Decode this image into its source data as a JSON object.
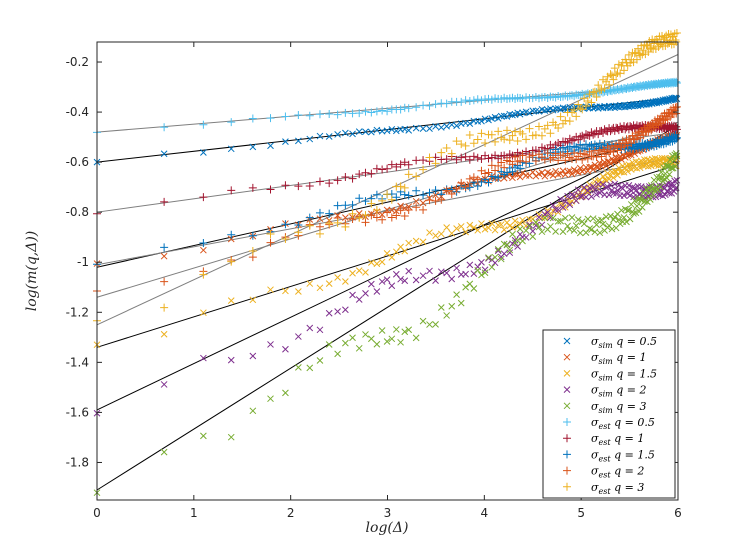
{
  "chart_data": {
    "type": "scatter",
    "title": "",
    "xlabel": "log(Δ)",
    "ylabel": "log(m(q,Δ))",
    "xlim": [
      0,
      6
    ],
    "ylim": [
      -1.95,
      -0.12
    ],
    "xticks": [
      0,
      1,
      2,
      3,
      4,
      5,
      6
    ],
    "xtick_labels": [
      "0",
      "1",
      "2",
      "3",
      "4",
      "5",
      "6"
    ],
    "yticks": [
      -1.8,
      -1.6,
      -1.4,
      -1.2,
      -1,
      -0.8,
      -0.6,
      -0.4,
      -0.2
    ],
    "ytick_labels": [
      "-1.8",
      "-1.6",
      "-1.4",
      "-1.2",
      "-1",
      "-0.8",
      "-0.6",
      "-0.4",
      "-0.2"
    ],
    "grid": false,
    "legend_position": "bottom-right",
    "series": [
      {
        "name": "σ_sim q = 0.5",
        "sub": "sim",
        "q": "0.5",
        "marker": "x",
        "color": "#0072BD",
        "intercept": -0.6,
        "end": -0.34,
        "osc": 0.008
      },
      {
        "name": "σ_sim q = 1",
        "sub": "sim",
        "q": "1",
        "marker": "x",
        "color": "#D95319",
        "intercept": -1.02,
        "end": -0.52,
        "osc": 0.018
      },
      {
        "name": "σ_sim q = 1.5",
        "sub": "sim",
        "q": "1.5",
        "marker": "x",
        "color": "#EDB120",
        "intercept": -1.34,
        "end": -0.6,
        "osc": 0.03
      },
      {
        "name": "σ_sim q = 2",
        "sub": "sim",
        "q": "2",
        "marker": "x",
        "color": "#7E2F8E",
        "intercept": -1.59,
        "end": -0.62,
        "osc": 0.045
      },
      {
        "name": "σ_sim q = 3",
        "sub": "sim",
        "q": "3",
        "marker": "x",
        "color": "#77AC30",
        "intercept": -1.91,
        "end": -0.6,
        "osc": 0.06
      },
      {
        "name": "σ_est q = 0.5",
        "sub": "est",
        "q": "0.5",
        "marker": "+",
        "color": "#4DBEEE",
        "intercept": -0.48,
        "end": -0.29,
        "osc": 0.006
      },
      {
        "name": "σ_est q = 1",
        "sub": "est",
        "q": "1",
        "marker": "+",
        "color": "#A2142F",
        "intercept": -0.8,
        "end": -0.45,
        "osc": 0.015
      },
      {
        "name": "σ_est q = 1.5",
        "sub": "est",
        "q": "1.5",
        "marker": "+",
        "color": "#0072BD",
        "intercept": -1.01,
        "end": -0.47,
        "osc": 0.022
      },
      {
        "name": "σ_est q = 2",
        "sub": "est",
        "q": "2",
        "marker": "+",
        "color": "#D95319",
        "intercept": -1.14,
        "end": -0.42,
        "osc": 0.03
      },
      {
        "name": "σ_est q = 3",
        "sub": "est",
        "q": "3",
        "marker": "+",
        "color": "#EDB120",
        "intercept": -1.25,
        "end": -0.15,
        "osc": 0.045
      }
    ],
    "fit_lines": [
      {
        "color": "#000000",
        "y0": -0.6,
        "y6": -0.34
      },
      {
        "color": "#000000",
        "y0": -1.02,
        "y6": -0.5
      },
      {
        "color": "#000000",
        "y0": -1.34,
        "y6": -0.61
      },
      {
        "color": "#000000",
        "y0": -1.59,
        "y6": -0.48
      },
      {
        "color": "#000000",
        "y0": -1.91,
        "y6": -0.45
      },
      {
        "color": "#7f7f7f",
        "y0": -0.48,
        "y6": -0.29
      },
      {
        "color": "#7f7f7f",
        "y0": -0.8,
        "y6": -0.48
      },
      {
        "color": "#7f7f7f",
        "y0": -1.01,
        "y6": -0.58
      },
      {
        "color": "#7f7f7f",
        "y0": -1.14,
        "y6": -0.44
      },
      {
        "color": "#7f7f7f",
        "y0": -1.25,
        "y6": -0.17
      }
    ]
  }
}
